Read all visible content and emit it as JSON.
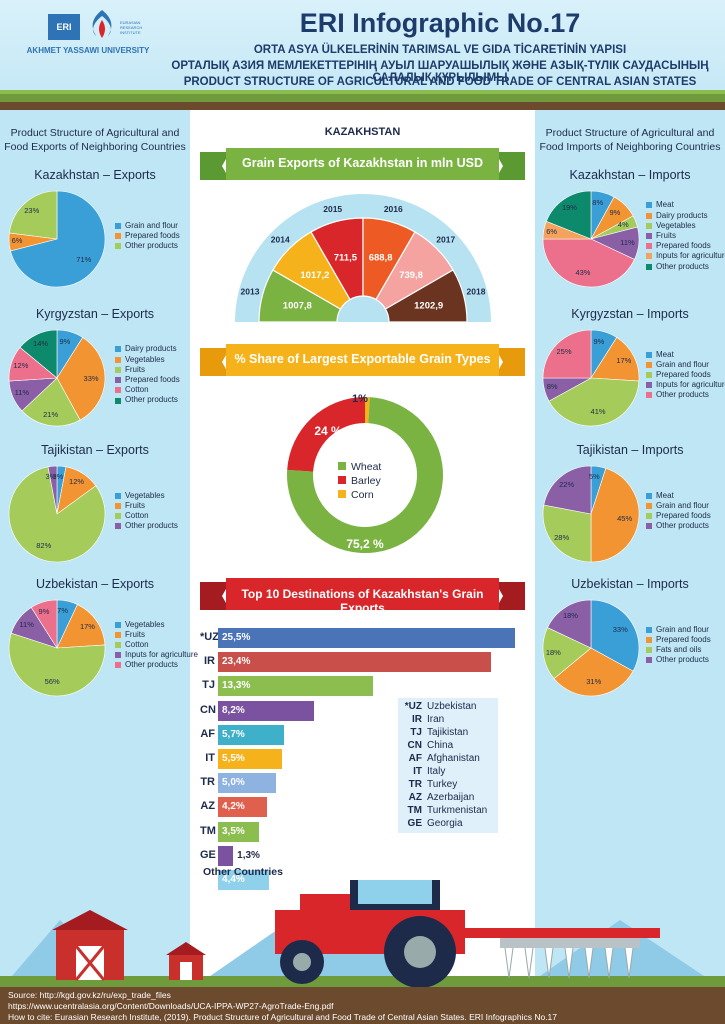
{
  "header": {
    "logo_abbr": "ERI",
    "logo_text": "EURASIAN RESEARCH INSTITUTE",
    "university": "AKHMET YASSAWI UNIVERSITY",
    "title": "ERI Infographic No.17",
    "subtitle_tr": "ORTA ASYA ÜLKELERİNİN TARIMSAL VE GIDA TİCARETİNİN YAPISI",
    "subtitle_kz": "ОРТАЛЫҚ АЗИЯ МЕМЛЕКЕТТЕРІНІҢ АУЫЛ ШАРУАШЫЛЫҚ ЖӘНЕ АЗЫҚ-ТҮЛІК САУДАСЫНЫҢ САЛАЛЫҚ ҚҰРЫЛЫМЫ",
    "subtitle_en": "PRODUCT STRUCTURE OF AGRICULTURAL AND FOOD TRADE OF CENTRAL ASIAN STATES"
  },
  "left": {
    "heading": "Product Structure of Agricultural and Food Exports of Neighboring Countries",
    "charts": [
      {
        "title": "Kazakhstan – Exports",
        "slices": [
          {
            "label": "Grain and flour",
            "value": 71,
            "color": "#3a9fd6",
            "pct": "71%"
          },
          {
            "label": "Prepared foods",
            "value": 6,
            "color": "#f29432",
            "pct": "6%"
          },
          {
            "label": "Other products",
            "value": 23,
            "color": "#a5cc5a",
            "pct": "23%"
          }
        ]
      },
      {
        "title": "Kyrgyzstan – Exports",
        "slices": [
          {
            "label": "Dairy products",
            "value": 9,
            "color": "#3a9fd6",
            "pct": "9%"
          },
          {
            "label": "Vegetables",
            "value": 33,
            "color": "#f29432",
            "pct": "33%"
          },
          {
            "label": "Fruits",
            "value": 21,
            "color": "#a5cc5a",
            "pct": "21%"
          },
          {
            "label": "Prepared foods",
            "value": 11,
            "color": "#8a5fa6",
            "pct": "11%"
          },
          {
            "label": "Cotton",
            "value": 12,
            "color": "#ec6f8b",
            "pct": "12%"
          },
          {
            "label": "Other products",
            "value": 14,
            "color": "#0d8a6c",
            "pct": "14%"
          }
        ]
      },
      {
        "title": "Tajikistan – Exports",
        "slices": [
          {
            "label": "Vegetables",
            "value": 3,
            "color": "#3a9fd6",
            "pct": "3%"
          },
          {
            "label": "Fruits",
            "value": 12,
            "color": "#f29432",
            "pct": "12%"
          },
          {
            "label": "Cotton",
            "value": 82,
            "color": "#a5cc5a",
            "pct": "82%"
          },
          {
            "label": "Other products",
            "value": 3,
            "color": "#8a5fa6",
            "pct": "3%"
          }
        ]
      },
      {
        "title": "Uzbekistan – Exports",
        "slices": [
          {
            "label": "Vegetables",
            "value": 7,
            "color": "#3a9fd6",
            "pct": "7%"
          },
          {
            "label": "Fruits",
            "value": 17,
            "color": "#f29432",
            "pct": "17%"
          },
          {
            "label": "Cotton",
            "value": 56,
            "color": "#a5cc5a",
            "pct": "56%"
          },
          {
            "label": "Inputs for agriculture",
            "value": 11,
            "color": "#8a5fa6",
            "pct": "11%"
          },
          {
            "label": "Other products",
            "value": 9,
            "color": "#ec6f8b",
            "pct": "9%"
          }
        ]
      }
    ]
  },
  "right": {
    "heading": "Product Structure of Agricultural and Food Imports of Neighboring Countries",
    "charts": [
      {
        "title": "Kazakhstan – Imports",
        "slices": [
          {
            "label": "Meat",
            "value": 8,
            "color": "#3a9fd6",
            "pct": "8%"
          },
          {
            "label": "Dairy products",
            "value": 9,
            "color": "#f29432",
            "pct": "9%"
          },
          {
            "label": "Vegetables",
            "value": 4,
            "color": "#a5cc5a",
            "pct": "4%"
          },
          {
            "label": "Fruits",
            "value": 11,
            "color": "#8a5fa6",
            "pct": "11%"
          },
          {
            "label": "Prepared foods",
            "value": 43,
            "color": "#ec6f8b",
            "pct": "43%"
          },
          {
            "label": "Inputs for agriculture",
            "value": 6,
            "color": "#f3a35b",
            "pct": "6%"
          },
          {
            "label": "Other products",
            "value": 19,
            "color": "#0d8a6c",
            "pct": "19%"
          }
        ]
      },
      {
        "title": "Kyrgyzstan – Imports",
        "slices": [
          {
            "label": "Meat",
            "value": 9,
            "color": "#3a9fd6",
            "pct": "9%"
          },
          {
            "label": "Grain and flour",
            "value": 17,
            "color": "#f29432",
            "pct": "17%"
          },
          {
            "label": "Prepared foods",
            "value": 41,
            "color": "#a5cc5a",
            "pct": "41%"
          },
          {
            "label": "Inputs for agriculture",
            "value": 8,
            "color": "#8a5fa6",
            "pct": "8%"
          },
          {
            "label": "Other products",
            "value": 25,
            "color": "#ec6f8b",
            "pct": "25%"
          }
        ]
      },
      {
        "title": "Tajikistan – Imports",
        "slices": [
          {
            "label": "Meat",
            "value": 5,
            "color": "#3a9fd6",
            "pct": "5%"
          },
          {
            "label": "Grain and flour",
            "value": 45,
            "color": "#f29432",
            "pct": "45%"
          },
          {
            "label": "Prepared foods",
            "value": 28,
            "color": "#a5cc5a",
            "pct": "28%"
          },
          {
            "label": "Other products",
            "value": 22,
            "color": "#8a5fa6",
            "pct": "22%"
          }
        ]
      },
      {
        "title": "Uzbekistan – Imports",
        "slices": [
          {
            "label": "Grain and flour",
            "value": 33,
            "color": "#3a9fd6",
            "pct": "33%"
          },
          {
            "label": "Prepared foods",
            "value": 31,
            "color": "#f29432",
            "pct": "31%"
          },
          {
            "label": "Fats and oils",
            "value": 18,
            "color": "#a5cc5a",
            "pct": "18%"
          },
          {
            "label": "Other products",
            "value": 18,
            "color": "#8a5fa6",
            "pct": "18%"
          }
        ]
      }
    ]
  },
  "center": {
    "country": "KAZAKHSTAN",
    "grain_title": "Grain Exports of Kazakhstan in mln USD",
    "grain": [
      {
        "year": "2013",
        "value": "1007,8",
        "color": "#7ab342"
      },
      {
        "year": "2014",
        "value": "1017,2",
        "color": "#f5b21b"
      },
      {
        "year": "2015",
        "value": "711,5",
        "color": "#d9262a"
      },
      {
        "year": "2016",
        "value": "688,8",
        "color": "#ee5a24"
      },
      {
        "year": "2017",
        "value": "739,8",
        "color": "#f4a3a0"
      },
      {
        "year": "2018",
        "value": "1202,9",
        "color": "#6b3420"
      }
    ],
    "share_title": "% Share of Largest Exportable Grain Types",
    "share": [
      {
        "label": "Wheat",
        "value": 75.2,
        "text": "75,2 %",
        "color": "#7ab342"
      },
      {
        "label": "Barley",
        "value": 24,
        "text": "24 %",
        "color": "#d9262a"
      },
      {
        "label": "Corn",
        "value": 1,
        "text": "1%",
        "color": "#f5b21b"
      }
    ],
    "dest_title": "Top 10 Destinations of Kazakhstan's Grain Exports",
    "dest": [
      {
        "code": "*UZ",
        "value": 25.5,
        "text": "25,5%",
        "color": "#4a73b8"
      },
      {
        "code": "IR",
        "value": 23.4,
        "text": "23,4%",
        "color": "#c9504a"
      },
      {
        "code": "TJ",
        "value": 13.3,
        "text": "13,3%",
        "color": "#8cbe4f"
      },
      {
        "code": "CN",
        "value": 8.2,
        "text": "8,2%",
        "color": "#7a52a0"
      },
      {
        "code": "AF",
        "value": 5.7,
        "text": "5,7%",
        "color": "#3fb0c9"
      },
      {
        "code": "IT",
        "value": 5.5,
        "text": "5,5%",
        "color": "#f5b21b"
      },
      {
        "code": "TR",
        "value": 5.0,
        "text": "5,0%",
        "color": "#8fb3e0"
      },
      {
        "code": "AZ",
        "value": 4.2,
        "text": "4,2%",
        "color": "#e0604e"
      },
      {
        "code": "TM",
        "value": 3.5,
        "text": "3,5%",
        "color": "#8cbe4f"
      },
      {
        "code": "GE",
        "value": 1.3,
        "text": "1,3%",
        "color": "#7a52a0"
      },
      {
        "code": "",
        "value": 4.4,
        "text": "4,4%",
        "color": "#8fd0ea"
      }
    ],
    "other_countries": "Other Countries",
    "legend": [
      {
        "code": "*UZ",
        "name": "Uzbekistan"
      },
      {
        "code": "IR",
        "name": "Iran"
      },
      {
        "code": "TJ",
        "name": "Tajikistan"
      },
      {
        "code": "CN",
        "name": "China"
      },
      {
        "code": "AF",
        "name": "Afghanistan"
      },
      {
        "code": "IT",
        "name": "Italy"
      },
      {
        "code": "TR",
        "name": "Turkey"
      },
      {
        "code": "AZ",
        "name": "Azerbaijan"
      },
      {
        "code": "TM",
        "name": "Turkmenistan"
      },
      {
        "code": "GE",
        "name": "Georgia"
      }
    ]
  },
  "footer": {
    "source1": "Source: http://kgd.gov.kz/ru/exp_trade_files",
    "source2": "https://www.ucentralasia.org/Content/Downloads/UCA-IPPA-WP27-AgroTrade-Eng.pdf",
    "cite": "How to cite: Eurasian Research Institute, (2019). Product Structure of Agricultural and Food Trade of Central Asian States. ERI Infographics No.17"
  }
}
